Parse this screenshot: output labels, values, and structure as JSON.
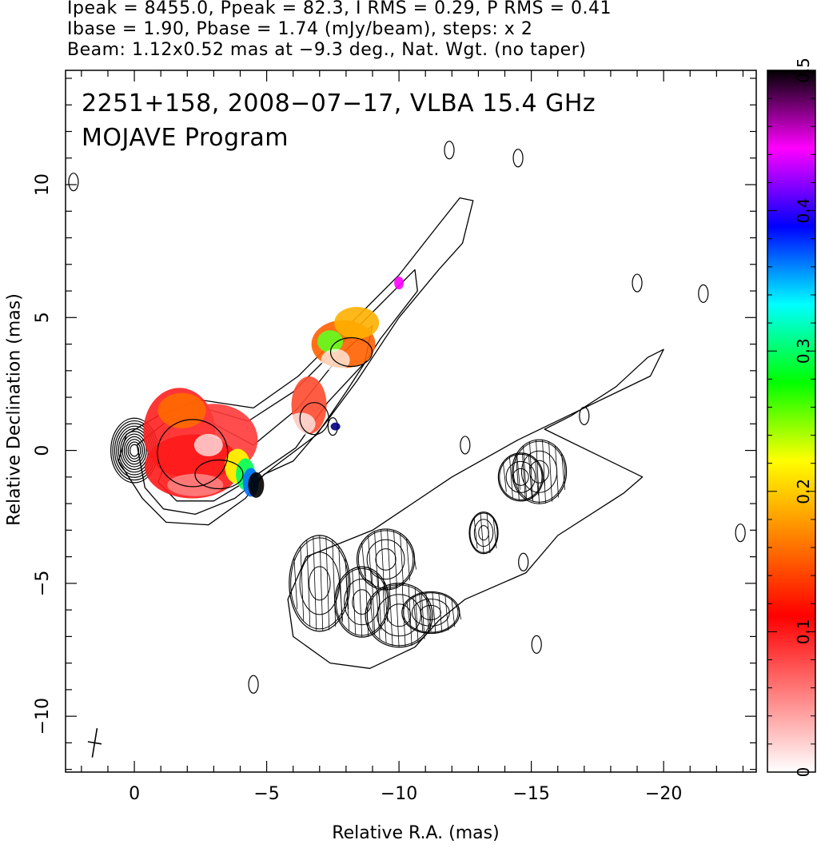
{
  "header": {
    "line1": "Ipeak = 8455.0, Ppeak = 82.3, I RMS = 0.29, P RMS = 0.41",
    "line2": "Ibase = 1.90, Pbase = 1.74 (mJy/beam), steps: x 2",
    "line3": "Beam: 1.12x0.52 mas at −9.3 deg., Nat. Wgt. (no taper)"
  },
  "chart_data": {
    "type": "heatmap",
    "title": "2251+158, 2008−07−17, VLBA 15.4 GHz",
    "subtitle": "MOJAVE Program",
    "xlabel": "Relative R.A. (mas)",
    "ylabel": "Relative Declination (mas)",
    "xlim": [
      2.6,
      -23.5
    ],
    "ylim": [
      -12.1,
      14.3
    ],
    "x_ticks": [
      0,
      -5,
      -10,
      -15,
      -20
    ],
    "x_tick_labels": [
      "0",
      "−5",
      "−10",
      "−15",
      "−20"
    ],
    "y_ticks": [
      -10,
      -5,
      0,
      5,
      10
    ],
    "y_tick_labels": [
      "−10",
      "−5",
      "0",
      "5",
      "10"
    ],
    "colorbar": {
      "range": [
        0,
        0.5
      ],
      "ticks": [
        0,
        0.1,
        0.2,
        0.3,
        0.4,
        0.5
      ],
      "tick_labels": [
        "0",
        "0.1",
        "0.2",
        "0.3",
        "0.4",
        "0.5"
      ]
    },
    "grid": false,
    "core": {
      "x": 0,
      "y": 0
    },
    "beam": {
      "major_mas": 1.12,
      "minor_mas": 0.52,
      "pa_deg": -9.3,
      "center": [
        1.5,
        -11.0
      ]
    },
    "colors": {
      "stops": [
        "#ffffff",
        "#ff8080",
        "#ff0000",
        "#ff8000",
        "#ffff00",
        "#00ff00",
        "#00ffff",
        "#0000ff",
        "#ff00ff",
        "#000000"
      ]
    }
  }
}
